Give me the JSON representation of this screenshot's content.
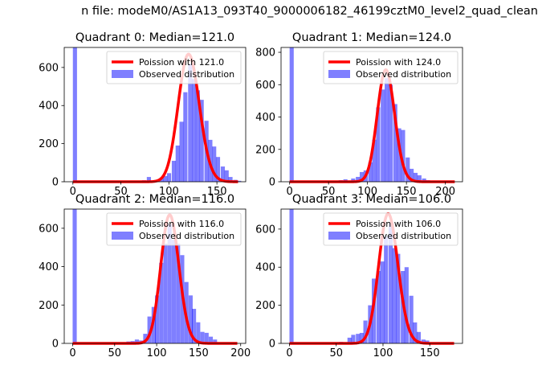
{
  "figure": {
    "suptitle": "n file: modeM0/AS1A13_093T40_9000006182_46199cztM0_level2_quad_clean"
  },
  "colors": {
    "poisson_line": "#ff0000",
    "histogram": "#0000ff",
    "histogram_alpha": 0.5
  },
  "chart_data": [
    {
      "type": "bar",
      "title": "Quadrant 0: Median=121.0",
      "xlim": [
        -9,
        180
      ],
      "ylim": [
        0,
        705
      ],
      "xticks": [
        0,
        50,
        100,
        150
      ],
      "yticks": [
        0,
        200,
        400,
        600
      ],
      "legend_placement": "upper right",
      "series": [
        {
          "name": "Poission with 121.0",
          "kind": "line",
          "lambda": 121.0,
          "x_range": [
            0,
            172
          ]
        },
        {
          "name": "Observed distribution",
          "kind": "histogram",
          "bin_width": 4.3,
          "bins": [
            [
              0,
              705
            ],
            [
              68,
              5
            ],
            [
              72,
              8
            ],
            [
              77,
              25
            ],
            [
              81,
              6
            ],
            [
              85,
              10
            ],
            [
              90,
              18
            ],
            [
              94,
              30
            ],
            [
              98,
              45
            ],
            [
              103,
              110
            ],
            [
              107,
              190
            ],
            [
              111,
              315
            ],
            [
              115,
              470
            ],
            [
              120,
              620
            ],
            [
              124,
              540
            ],
            [
              128,
              480
            ],
            [
              132,
              430
            ],
            [
              137,
              320
            ],
            [
              141,
              220
            ],
            [
              145,
              185
            ],
            [
              149,
              130
            ],
            [
              154,
              80
            ],
            [
              158,
              60
            ],
            [
              162,
              25
            ],
            [
              167,
              10
            ],
            [
              171,
              5
            ]
          ]
        }
      ]
    },
    {
      "type": "bar",
      "title": "Quadrant 1: Median=124.0",
      "xlim": [
        -11,
        222
      ],
      "ylim": [
        0,
        830
      ],
      "xticks": [
        0,
        50,
        100,
        150,
        200
      ],
      "yticks": [
        0,
        200,
        400,
        600,
        800
      ],
      "legend_placement": "upper right",
      "series": [
        {
          "name": "Poission with 124.0",
          "kind": "line",
          "lambda": 124.0,
          "x_range": [
            0,
            212
          ]
        },
        {
          "name": "Observed distribution",
          "kind": "histogram",
          "bin_width": 5.3,
          "bins": [
            [
              0,
              830
            ],
            [
              58,
              3
            ],
            [
              63,
              10
            ],
            [
              69,
              15
            ],
            [
              74,
              8
            ],
            [
              79,
              20
            ],
            [
              85,
              30
            ],
            [
              90,
              60
            ],
            [
              95,
              70
            ],
            [
              101,
              120
            ],
            [
              106,
              260
            ],
            [
              111,
              460
            ],
            [
              117,
              570
            ],
            [
              122,
              640
            ],
            [
              127,
              600
            ],
            [
              133,
              480
            ],
            [
              138,
              330
            ],
            [
              143,
              320
            ],
            [
              149,
              150
            ],
            [
              154,
              80
            ],
            [
              159,
              55
            ],
            [
              164,
              40
            ],
            [
              170,
              20
            ],
            [
              175,
              10
            ]
          ]
        }
      ]
    },
    {
      "type": "bar",
      "title": "Quadrant 2: Median=116.0",
      "xlim": [
        -10,
        206
      ],
      "ylim": [
        0,
        700
      ],
      "xticks": [
        0,
        50,
        100,
        150,
        200
      ],
      "yticks": [
        0,
        200,
        400,
        600
      ],
      "legend_placement": "upper right",
      "series": [
        {
          "name": "Poission with 116.0",
          "kind": "line",
          "lambda": 116.0,
          "x_range": [
            0,
            196
          ]
        },
        {
          "name": "Observed distribution",
          "kind": "histogram",
          "bin_width": 4.9,
          "bins": [
            [
              0,
              700
            ],
            [
              59,
              5
            ],
            [
              64,
              10
            ],
            [
              69,
              12
            ],
            [
              74,
              20
            ],
            [
              79,
              15
            ],
            [
              84,
              50
            ],
            [
              89,
              140
            ],
            [
              94,
              190
            ],
            [
              98,
              250
            ],
            [
              103,
              420
            ],
            [
              108,
              520
            ],
            [
              113,
              620
            ],
            [
              118,
              540
            ],
            [
              123,
              520
            ],
            [
              128,
              460
            ],
            [
              133,
              320
            ],
            [
              138,
              250
            ],
            [
              142,
              180
            ],
            [
              147,
              110
            ],
            [
              152,
              60
            ],
            [
              157,
              55
            ],
            [
              162,
              35
            ],
            [
              167,
              20
            ],
            [
              172,
              5
            ]
          ]
        }
      ]
    },
    {
      "type": "bar",
      "title": "Quadrant 3: Median=106.0",
      "xlim": [
        -9,
        185
      ],
      "ylim": [
        0,
        705
      ],
      "xticks": [
        0,
        50,
        100,
        150
      ],
      "yticks": [
        0,
        200,
        400,
        600
      ],
      "legend_placement": "upper right",
      "series": [
        {
          "name": "Poission with 106.0",
          "kind": "line",
          "lambda": 106.0,
          "x_range": [
            0,
            176
          ]
        },
        {
          "name": "Observed distribution",
          "kind": "histogram",
          "bin_width": 4.4,
          "bins": [
            [
              0,
              705
            ],
            [
              40,
              5
            ],
            [
              53,
              8
            ],
            [
              62,
              30
            ],
            [
              66,
              45
            ],
            [
              71,
              50
            ],
            [
              75,
              55
            ],
            [
              79,
              120
            ],
            [
              84,
              200
            ],
            [
              88,
              340
            ],
            [
              93,
              380
            ],
            [
              97,
              430
            ],
            [
              101,
              560
            ],
            [
              106,
              630
            ],
            [
              110,
              500
            ],
            [
              114,
              470
            ],
            [
              119,
              380
            ],
            [
              123,
              400
            ],
            [
              128,
              250
            ],
            [
              132,
              110
            ],
            [
              136,
              60
            ],
            [
              141,
              20
            ],
            [
              145,
              15
            ]
          ]
        }
      ]
    }
  ]
}
